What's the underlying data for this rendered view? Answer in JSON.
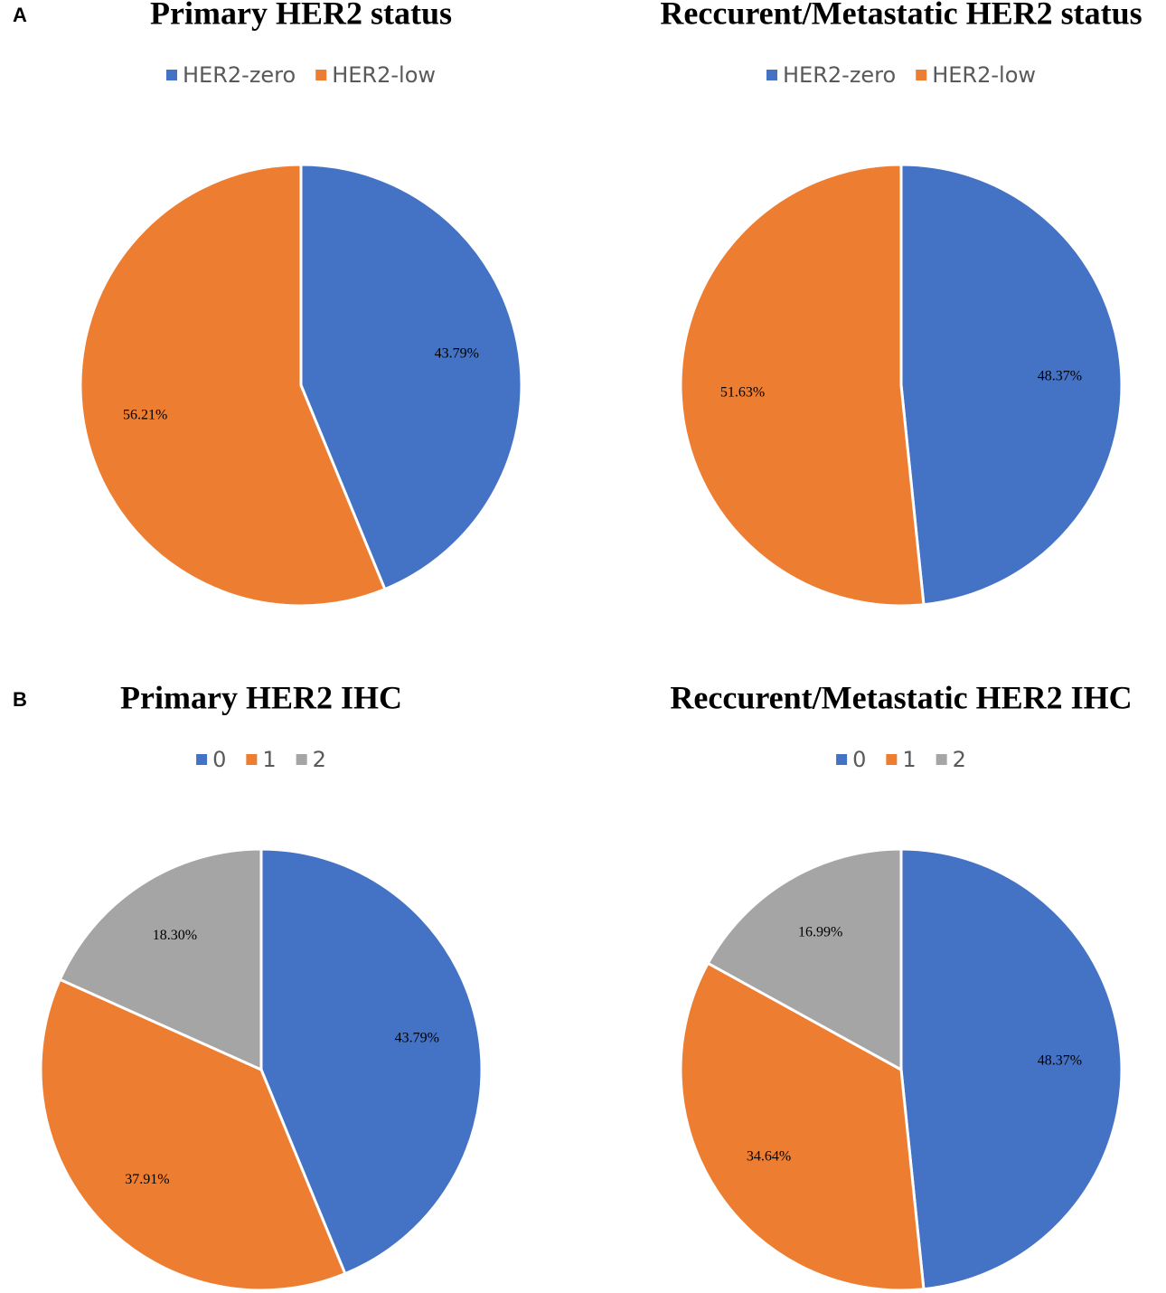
{
  "chart_data": [
    {
      "type": "pie",
      "panel_label": "A",
      "title": "Primary HER2 status",
      "categories": [
        "HER2-zero",
        "HER2-low"
      ],
      "values": [
        43.79,
        56.21
      ],
      "value_labels": [
        "43.79%",
        "56.21%"
      ],
      "colors": [
        "#4472c4",
        "#ed7d31"
      ]
    },
    {
      "type": "pie",
      "title": "Reccurent/Metastatic HER2 status",
      "categories": [
        "HER2-zero",
        "HER2-low"
      ],
      "values": [
        48.37,
        51.63
      ],
      "value_labels": [
        "48.37%",
        "51.63%"
      ],
      "colors": [
        "#4472c4",
        "#ed7d31"
      ]
    },
    {
      "type": "pie",
      "panel_label": "B",
      "title": "Primary HER2 IHC",
      "categories": [
        "0",
        "1",
        "2"
      ],
      "values": [
        43.79,
        37.91,
        18.3
      ],
      "value_labels": [
        "43.79%",
        "37.91%",
        "18.30%"
      ],
      "colors": [
        "#4472c4",
        "#ed7d31",
        "#a5a5a5"
      ]
    },
    {
      "type": "pie",
      "title": "Reccurent/Metastatic HER2 IHC",
      "categories": [
        "0",
        "1",
        "2"
      ],
      "values": [
        48.37,
        34.64,
        16.99
      ],
      "value_labels": [
        "48.37%",
        "34.64%",
        "16.99%"
      ],
      "colors": [
        "#4472c4",
        "#ed7d31",
        "#a5a5a5"
      ]
    }
  ]
}
